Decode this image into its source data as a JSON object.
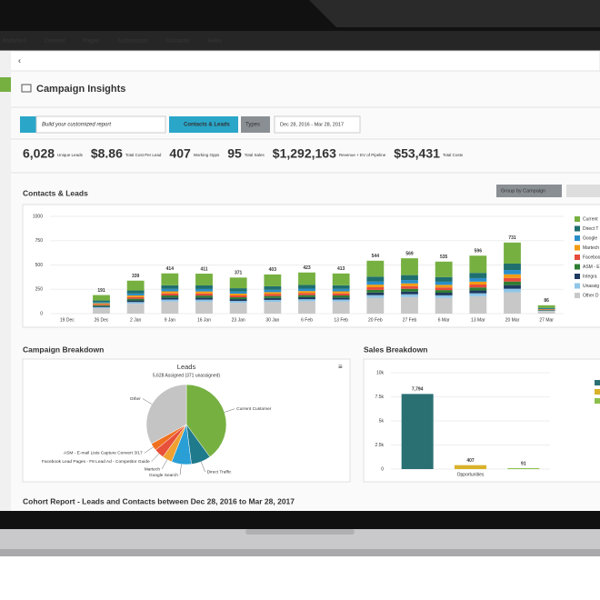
{
  "nav": [
    "Analytics",
    "Content",
    "Pages",
    "Automation",
    "Contacts",
    "Sales"
  ],
  "page_title": "Campaign Insights",
  "toolbar": {
    "search_placeholder": "Build your customized report",
    "view_button": "Contacts & Leads",
    "types_button": "Types",
    "date_range": "Dec 28, 2016 - Mar 28, 2017"
  },
  "kpis": [
    {
      "value": "6,028",
      "label": "Unique Leads"
    },
    {
      "value": "$8.86",
      "label": "Total Cost Per Lead"
    },
    {
      "value": "407",
      "label": "Working Opps"
    },
    {
      "value": "95",
      "label": "Total Sales"
    },
    {
      "value": "$1,292,163",
      "label": "Revenue + EV of Pipeline"
    },
    {
      "value": "$53,431",
      "label": "Total Costs"
    }
  ],
  "contacts_chart": {
    "type": "stacked_bar",
    "title": "Contacts & Leads",
    "group_button": "Group by Campaign",
    "categories": [
      "19 Dec",
      "26 Dec",
      "2 Jan",
      "9 Jan",
      "16 Jan",
      "23 Jan",
      "30 Jan",
      "6 Feb",
      "13 Feb",
      "20 Feb",
      "27 Feb",
      "6 Mar",
      "13 Mar",
      "20 Mar",
      "27 Mar"
    ],
    "totals": [
      null,
      191,
      339,
      414,
      411,
      371,
      403,
      423,
      413,
      544,
      569,
      535,
      596,
      731,
      86
    ],
    "ylim": [
      0,
      1000
    ],
    "yticks": [
      0,
      250,
      500,
      750,
      1000
    ],
    "series": [
      {
        "name": "Current",
        "color": "#76b041",
        "values": [
          0,
          56,
          101,
          123,
          121,
          110,
          122,
          128,
          122,
          164,
          173,
          159,
          177,
          217,
          27
        ]
      },
      {
        "name": "Direct T",
        "color": "#1f6f6f",
        "values": [
          0,
          17,
          31,
          37,
          37,
          33,
          36,
          38,
          37,
          49,
          51,
          48,
          54,
          66,
          8
        ]
      },
      {
        "name": "Google",
        "color": "#2a8fc9",
        "values": [
          0,
          11,
          20,
          25,
          25,
          22,
          24,
          25,
          25,
          33,
          34,
          32,
          36,
          44,
          5
        ]
      },
      {
        "name": "Martech",
        "color": "#f39c12",
        "values": [
          0,
          10,
          17,
          21,
          21,
          19,
          20,
          21,
          21,
          27,
          28,
          27,
          30,
          37,
          4
        ]
      },
      {
        "name": "Faceboo",
        "color": "#e74c3c",
        "values": [
          0,
          10,
          17,
          21,
          21,
          19,
          20,
          21,
          21,
          27,
          28,
          27,
          30,
          37,
          4
        ]
      },
      {
        "name": "ASM - E",
        "color": "#2e7d32",
        "values": [
          0,
          10,
          17,
          21,
          21,
          19,
          20,
          21,
          21,
          27,
          28,
          27,
          30,
          37,
          4
        ]
      },
      {
        "name": "Integra",
        "color": "#1e3a5f",
        "values": [
          0,
          10,
          17,
          21,
          21,
          19,
          20,
          21,
          21,
          27,
          28,
          27,
          30,
          37,
          4
        ]
      },
      {
        "name": "Unassig",
        "color": "#8fc6e8",
        "values": [
          0,
          10,
          17,
          21,
          21,
          19,
          20,
          21,
          21,
          27,
          28,
          27,
          30,
          37,
          4
        ]
      },
      {
        "name": "Other D",
        "color": "#c8c8c8",
        "values": [
          0,
          57,
          102,
          124,
          123,
          111,
          121,
          127,
          124,
          163,
          171,
          161,
          179,
          219,
          26
        ]
      }
    ]
  },
  "campaign_breakdown": {
    "type": "pie",
    "section_title": "Campaign Breakdown",
    "title": "Leads",
    "subtitle": "5,628 Assigned (371 unassigned)",
    "categories": [
      "Current Customer",
      "Direct Traffic",
      "Google Search",
      "Martech",
      "Facebook Lead Pages - F8 Lead Ad - Competitor Guide",
      "ASM - E-mail Lists Capture Convert 3/17",
      "Other"
    ],
    "values": [
      40,
      8,
      8,
      4,
      4,
      3,
      33
    ],
    "colors": [
      "#76b041",
      "#1f7a8c",
      "#2a9fd6",
      "#f0a030",
      "#e8503a",
      "#f07020",
      "#c4c4c4"
    ]
  },
  "sales_breakdown": {
    "type": "bar",
    "section_title": "Sales Breakdown",
    "categories": [
      null,
      "Opportunities",
      null
    ],
    "values": [
      7794,
      407,
      91
    ],
    "value_labels": [
      "7,794",
      "407",
      "91"
    ],
    "colors": [
      "#2a7073",
      "#d9b22a",
      "#8cc04b"
    ],
    "ylim": [
      0,
      10000
    ],
    "yticks": [
      0,
      {
        "value": 2500,
        "label": "2.5k"
      },
      {
        "value": 5000,
        "label": "5k"
      },
      {
        "value": 7500,
        "label": "7.5k"
      },
      {
        "value": 10000,
        "label": "10k"
      }
    ]
  },
  "cohort_title": "Cohort Report - Leads and Contacts between Dec 28, 2016 to Mar 28, 2017"
}
